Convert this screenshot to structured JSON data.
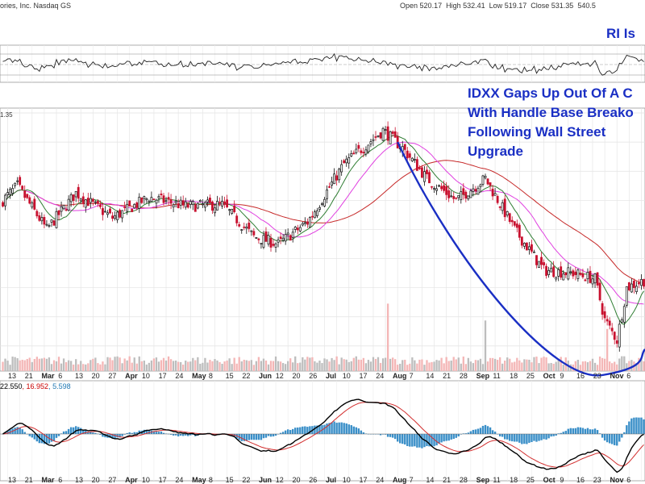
{
  "header": {
    "company": "ories, Inc. Nasdaq GS",
    "ohlc": [
      {
        "label": "Open",
        "value": "520.17"
      },
      {
        "label": "High",
        "value": "532.41"
      },
      {
        "label": "Low",
        "value": "519.17"
      },
      {
        "label": "Close",
        "value": "531.35"
      }
    ],
    "volume_cut": "540.5"
  },
  "rsi_label": "RI Is",
  "price_label": "1.35",
  "annotation_lines": [
    "IDXX Gaps Up Out Of A C",
    "With Handle Base Breako",
    "Following Wall Street",
    "Upgrade"
  ],
  "macd_label": [
    {
      "text": "22.550",
      "color": "#000000"
    },
    {
      "text": ", 16.952",
      "color": "#cc0000"
    },
    {
      "text": ", 5.598",
      "color": "#1f78b4"
    }
  ],
  "axis_labels": [
    {
      "text": "13",
      "bold": false
    },
    {
      "text": "21",
      "bold": false
    },
    {
      "text": "Mar",
      "bold": true
    },
    {
      "text": "6",
      "bold": false
    },
    {
      "text": "13",
      "bold": false
    },
    {
      "text": "20",
      "bold": false
    },
    {
      "text": "27",
      "bold": false
    },
    {
      "text": "Apr",
      "bold": true
    },
    {
      "text": "10",
      "bold": false
    },
    {
      "text": "17",
      "bold": false
    },
    {
      "text": "24",
      "bold": false
    },
    {
      "text": "May",
      "bold": true
    },
    {
      "text": "8",
      "bold": false
    },
    {
      "text": "15",
      "bold": false
    },
    {
      "text": "22",
      "bold": false
    },
    {
      "text": "Jun",
      "bold": true
    },
    {
      "text": "12",
      "bold": false
    },
    {
      "text": "20",
      "bold": false
    },
    {
      "text": "26",
      "bold": false
    },
    {
      "text": "Jul",
      "bold": true
    },
    {
      "text": "10",
      "bold": false
    },
    {
      "text": "17",
      "bold": false
    },
    {
      "text": "24",
      "bold": false
    },
    {
      "text": "Aug",
      "bold": true
    },
    {
      "text": "7",
      "bold": false
    },
    {
      "text": "14",
      "bold": false
    },
    {
      "text": "21",
      "bold": false
    },
    {
      "text": "28",
      "bold": false
    },
    {
      "text": "Sep",
      "bold": true
    },
    {
      "text": "11",
      "bold": false
    },
    {
      "text": "18",
      "bold": false
    },
    {
      "text": "25",
      "bold": false
    },
    {
      "text": "Oct",
      "bold": true
    },
    {
      "text": "9",
      "bold": false
    },
    {
      "text": "16",
      "bold": false
    },
    {
      "text": "23",
      "bold": false
    },
    {
      "text": "Nov",
      "bold": true
    },
    {
      "text": "6",
      "bold": false
    }
  ],
  "colors": {
    "up_candle": "#111111",
    "down_candle": "#c8102e",
    "ma_short": "#2e7d32",
    "ma_mid": "#e040e0",
    "ma_long": "#c62828",
    "cup_line": "#1a2fc4",
    "annotation": "#1a2fc4",
    "volume_up": "#bdbdbd",
    "volume_down": "#f4b6b6",
    "macd_hist": "#3a8fc8",
    "macd_line": "#000000",
    "signal_line": "#d32f2f",
    "rsi_fill": "#2e7d32"
  },
  "chart_data": {
    "type": "candlestick",
    "title": "",
    "x_tick_labels": [
      "13",
      "21",
      "Mar 6",
      "13",
      "20",
      "27",
      "Apr 10",
      "17",
      "24",
      "May 8",
      "15",
      "22",
      "Jun 12",
      "20",
      "26",
      "Jul 10",
      "17",
      "24",
      "Aug 7",
      "14",
      "21",
      "28",
      "Sep 11",
      "18",
      "25",
      "Oct 9",
      "16",
      "23",
      "Nov 6"
    ],
    "last_bar": {
      "open": 520.17,
      "high": 532.41,
      "low": 519.17,
      "close": 531.35
    },
    "price_path_keypoints": [
      {
        "idx": 0,
        "close": 500
      },
      {
        "idx": 6,
        "close": 510
      },
      {
        "idx": 18,
        "close": 480
      },
      {
        "idx": 30,
        "close": 505
      },
      {
        "idx": 45,
        "close": 488
      },
      {
        "idx": 60,
        "close": 502
      },
      {
        "idx": 75,
        "close": 496
      },
      {
        "idx": 90,
        "close": 497
      },
      {
        "idx": 103,
        "close": 475
      },
      {
        "idx": 113,
        "close": 470
      },
      {
        "idx": 125,
        "close": 485
      },
      {
        "idx": 140,
        "close": 525
      },
      {
        "idx": 156,
        "close": 548
      },
      {
        "idx": 164,
        "close": 536
      },
      {
        "idx": 174,
        "close": 515
      },
      {
        "idx": 186,
        "close": 500
      },
      {
        "idx": 198,
        "close": 515
      },
      {
        "idx": 210,
        "close": 480
      },
      {
        "idx": 222,
        "close": 452
      },
      {
        "idx": 234,
        "close": 450
      },
      {
        "idx": 243,
        "close": 446
      },
      {
        "idx": 247,
        "close": 418
      },
      {
        "idx": 252,
        "close": 404
      },
      {
        "idx": 256,
        "close": 440
      },
      {
        "idx": 263,
        "close": 445
      }
    ],
    "cup_curve": {
      "left_rim_idx": 162,
      "bottom_idx": 246,
      "right_idx": 263,
      "rim_price": 540,
      "bottom_price": 380
    },
    "volume_spikes": [
      {
        "idx": 158,
        "relative": 4
      },
      {
        "idx": 198,
        "relative": 3
      },
      {
        "idx": 248,
        "relative": 2.5
      }
    ],
    "indicators": {
      "moving_averages": [
        "short",
        "mid",
        "long"
      ],
      "rsi": true,
      "macd": {
        "macd": 22.55,
        "signal": 16.952,
        "histogram": 5.598
      }
    },
    "grid": true
  }
}
